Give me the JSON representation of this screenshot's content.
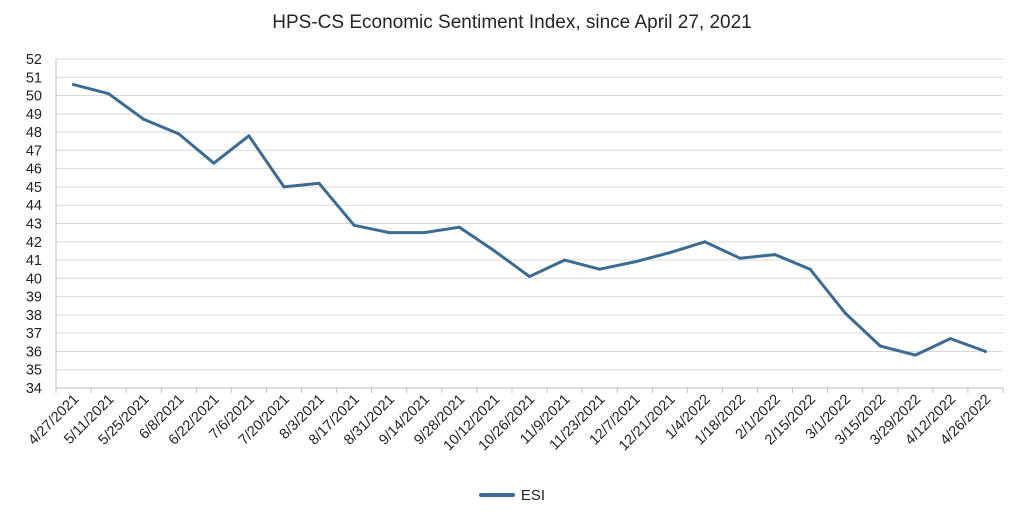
{
  "chart_data": {
    "type": "line",
    "title": "HPS-CS Economic Sentiment Index, since April 27, 2021",
    "xlabel": "",
    "ylabel": "",
    "ylim": [
      34,
      52
    ],
    "y_ticks": [
      34,
      35,
      36,
      37,
      38,
      39,
      40,
      41,
      42,
      43,
      44,
      45,
      46,
      47,
      48,
      49,
      50,
      51,
      52
    ],
    "categories": [
      "4/27/2021",
      "5/11/2021",
      "5/25/2021",
      "6/8/2021",
      "6/22/2021",
      "7/6/2021",
      "7/20/2021",
      "8/3/2021",
      "8/17/2021",
      "8/31/2021",
      "9/14/2021",
      "9/28/2021",
      "10/12/2021",
      "10/26/2021",
      "11/9/2021",
      "11/23/2021",
      "12/7/2021",
      "12/21/2021",
      "1/4/2022",
      "1/18/2022",
      "2/1/2022",
      "2/15/2022",
      "3/1/2022",
      "3/15/2022",
      "3/29/2022",
      "4/12/2022",
      "4/26/2022"
    ],
    "series": [
      {
        "name": "ESI",
        "color": "#3d6b94",
        "values": [
          50.6,
          50.1,
          48.7,
          47.9,
          46.3,
          47.8,
          45.0,
          45.2,
          42.9,
          42.5,
          42.5,
          42.8,
          41.5,
          40.1,
          41.0,
          40.5,
          40.9,
          41.4,
          42.0,
          41.1,
          41.3,
          40.5,
          38.1,
          36.3,
          35.8,
          36.7,
          36.0
        ]
      }
    ],
    "grid": true,
    "legend": "bottom"
  }
}
